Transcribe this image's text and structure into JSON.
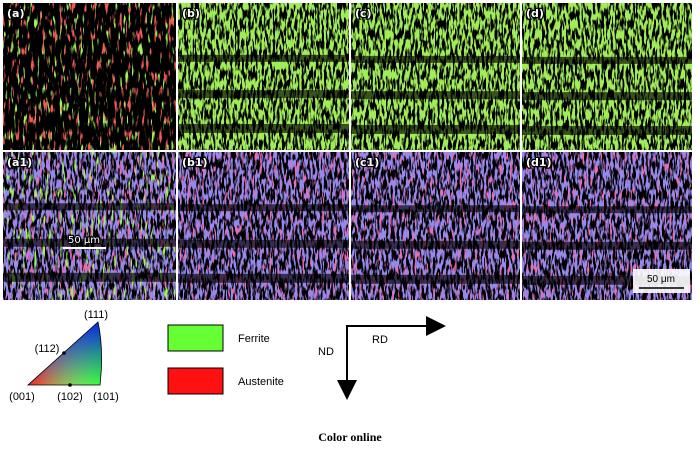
{
  "panels": [
    {
      "label": "(a)"
    },
    {
      "label": "(b)"
    },
    {
      "label": "(c)"
    },
    {
      "label": "(d)"
    },
    {
      "label": "(a1)"
    },
    {
      "label": "(b1)"
    },
    {
      "label": "(c1)"
    },
    {
      "label": "(d1)"
    }
  ],
  "scale_bars": [
    "50 μm",
    "50 μm"
  ],
  "ipf_legend": {
    "poles": [
      "(111)",
      "(112)",
      "(001)",
      "(102)",
      "(101)"
    ]
  },
  "phase_legend": [
    {
      "name": "Ferrite"
    },
    {
      "name": "Austenite"
    }
  ],
  "axes": {
    "rd": "RD",
    "nd": "ND"
  },
  "caption": "Color online"
}
